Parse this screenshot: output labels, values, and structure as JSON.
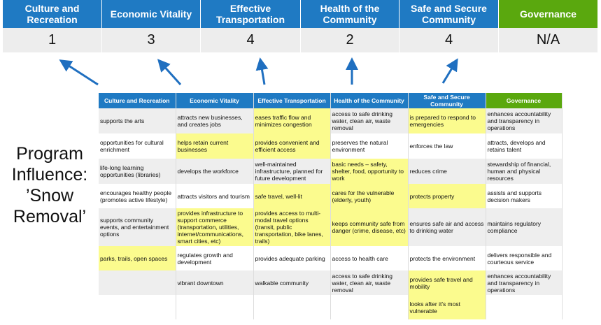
{
  "categories": [
    {
      "label": "Culture and Recreation",
      "score": "1"
    },
    {
      "label": "Economic Vitality",
      "score": "3"
    },
    {
      "label": "Effective Transportation",
      "score": "4"
    },
    {
      "label": "Health of the Community",
      "score": "2"
    },
    {
      "label": "Safe and Secure Community",
      "score": "4"
    },
    {
      "label": "Governance",
      "score": "N/A"
    }
  ],
  "colors": {
    "header_blue": "#1f7ac3",
    "governance_green": "#5aa80e",
    "highlight": "#fbfb8e",
    "arrow": "#1f6fc0"
  },
  "side_title": "Program Influence: ’Snow Removal’",
  "table": {
    "headers": [
      "Culture and Recreation",
      "Economic Vitality",
      "Effective Transportation",
      "Health of the Community",
      "Safe and Secure Community",
      "Governance"
    ],
    "rows": [
      [
        {
          "t": "supports the arts"
        },
        {
          "t": "attracts new businesses, and creates jobs"
        },
        {
          "t": "eases traffic flow and minimizes congestion",
          "h": true
        },
        {
          "t": "access to safe drinking water, clean air, waste removal"
        },
        {
          "t": "is prepared to respond to emergencies",
          "h": true
        },
        {
          "t": "enhances accountability and transparency in operations"
        }
      ],
      [
        {
          "t": "opportunities for cultural enrichment"
        },
        {
          "t": "helps retain current businesses",
          "h": true
        },
        {
          "t": "provides convenient and efficient access",
          "h": true
        },
        {
          "t": "preserves the natural environment"
        },
        {
          "t": "enforces the law"
        },
        {
          "t": "attracts, develops and retains talent"
        }
      ],
      [
        {
          "t": "life-long learning opportunities (libraries)"
        },
        {
          "t": "develops the workforce"
        },
        {
          "t": "well-maintained infrastructure, planned for future development"
        },
        {
          "t": "basic needs – safety, shelter, food, opportunity to work",
          "h": true
        },
        {
          "t": "reduces crime"
        },
        {
          "t": "stewardship of financial, human and physical resources"
        }
      ],
      [
        {
          "t": "encourages healthy people (promotes active lifestyle)"
        },
        {
          "t": "attracts visitors and tourism"
        },
        {
          "t": "safe travel, well-lit",
          "h": true
        },
        {
          "t": "cares for the vulnerable (elderly, youth)",
          "h": true
        },
        {
          "t": "protects property",
          "h": true
        },
        {
          "t": "assists and supports decision makers"
        }
      ],
      [
        {
          "t": "supports community events, and entertainment options"
        },
        {
          "t": "provides infrastructure to support commerce (transportation, utilities, internet/communications, smart cities, etc)",
          "h": true
        },
        {
          "t": "provides access to multi-modal travel options (transit, public transportation, bike lanes, trails)",
          "h": true
        },
        {
          "t": "keeps community safe from danger (crime, disease, etc)",
          "h": true
        },
        {
          "t": "ensures safe air and access to drinking water"
        },
        {
          "t": "maintains regulatory compliance"
        }
      ],
      [
        {
          "t": "parks, trails, open spaces",
          "h": true
        },
        {
          "t": "regulates growth and development"
        },
        {
          "t": "provides adequate parking"
        },
        {
          "t": "access to health care"
        },
        {
          "t": "protects the environment"
        },
        {
          "t": "delivers responsible and courteous service"
        }
      ],
      [
        {
          "t": ""
        },
        {
          "t": "vibrant downtown"
        },
        {
          "t": "walkable community"
        },
        {
          "t": "access to safe drinking water, clean air, waste removal"
        },
        {
          "t": "provides safe travel and mobility",
          "h": true
        },
        {
          "t": "enhances accountability and transparency in operations"
        }
      ],
      [
        {
          "t": ""
        },
        {
          "t": ""
        },
        {
          "t": ""
        },
        {
          "t": ""
        },
        {
          "t": "looks after it's most vulnerable",
          "h": true
        },
        {
          "t": ""
        }
      ]
    ]
  }
}
